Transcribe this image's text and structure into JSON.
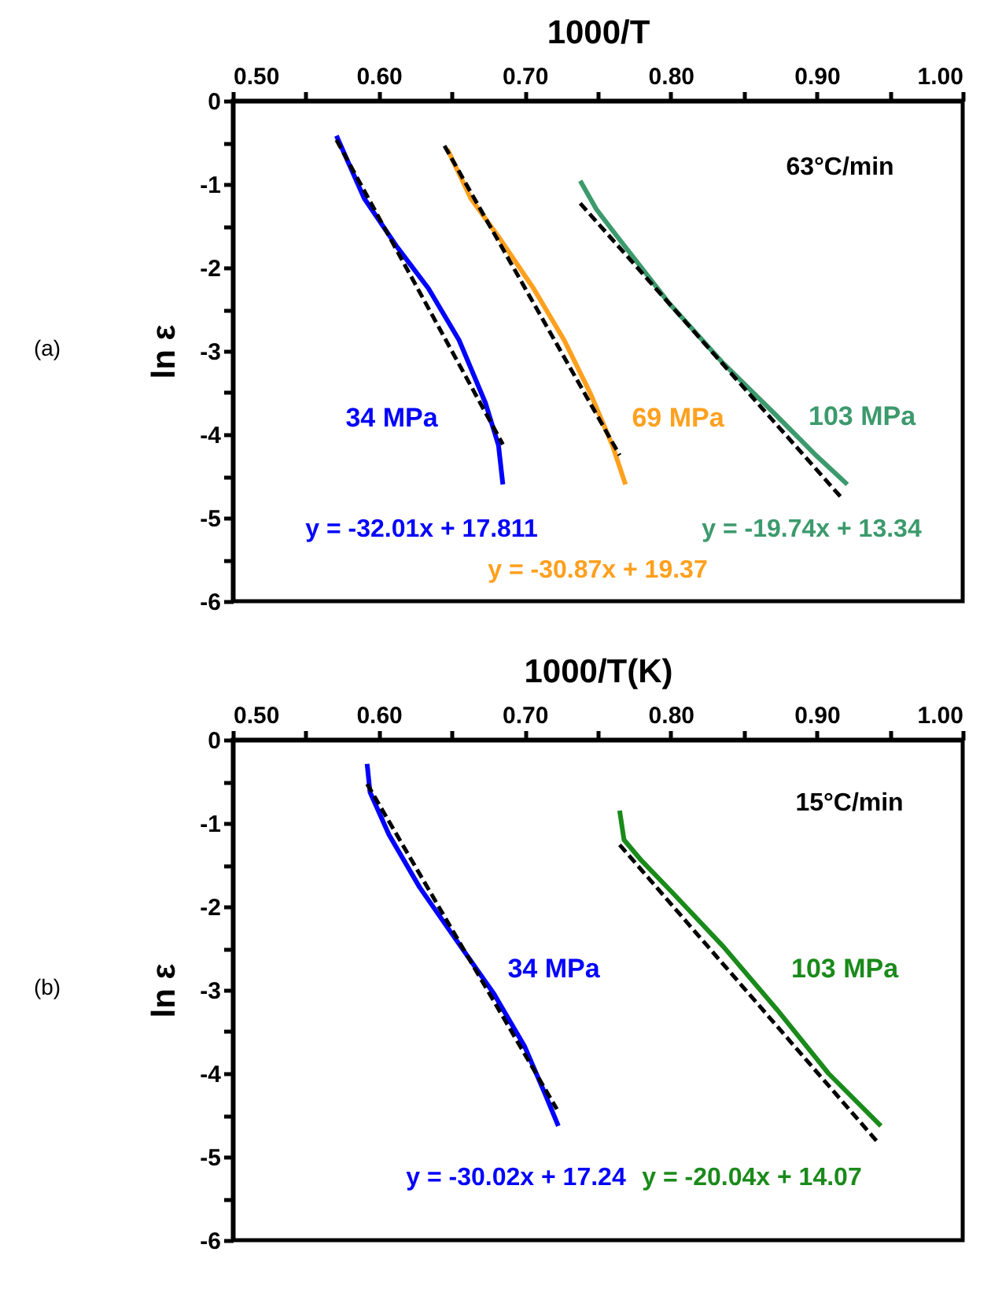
{
  "chart_data": [
    {
      "type": "line",
      "xlabel": "1000/T",
      "ylabel": "ln ε",
      "xlim": [
        0.5,
        1.0
      ],
      "ylim": [
        -6,
        0
      ],
      "xticks": [
        {
          "value": 0.5,
          "label": "0.50"
        },
        {
          "value": 0.55,
          "label": null
        },
        {
          "value": 0.6,
          "label": "0.60"
        },
        {
          "value": 0.65,
          "label": null
        },
        {
          "value": 0.7,
          "label": "0.70"
        },
        {
          "value": 0.75,
          "label": null
        },
        {
          "value": 0.8,
          "label": "0.80"
        },
        {
          "value": 0.85,
          "label": null
        },
        {
          "value": 0.9,
          "label": "0.90"
        },
        {
          "value": 0.95,
          "label": null
        },
        {
          "value": 1.0,
          "label": "1.00"
        }
      ],
      "yticks": [
        -6,
        {
          "value": -5.5,
          "label": null
        },
        -5,
        {
          "value": -4.5,
          "label": null
        },
        -4,
        {
          "value": -3.5,
          "label": null
        },
        -3,
        {
          "value": -2.5,
          "label": null
        },
        -2,
        {
          "value": -1.5,
          "label": null
        },
        -1,
        {
          "value": -0.5,
          "label": null
        },
        0
      ],
      "series": [
        {
          "name": "34 MPa",
          "color": "#0000ff",
          "x": [
            0.571,
            0.59,
            0.612,
            0.634,
            0.655,
            0.673,
            0.682,
            0.685
          ],
          "values": [
            -0.42,
            -1.17,
            -1.74,
            -2.25,
            -2.87,
            -3.62,
            -4.13,
            -4.6
          ]
        },
        {
          "color": "#000000",
          "line_style": "dashed",
          "x": [
            0.571,
            0.685
          ],
          "values": [
            -0.47,
            -4.12
          ]
        },
        {
          "name": "69 MPa",
          "color": "#ffa01e",
          "x": [
            0.647,
            0.663,
            0.684,
            0.706,
            0.727,
            0.745,
            0.76,
            0.769
          ],
          "values": [
            -0.58,
            -1.17,
            -1.68,
            -2.25,
            -2.87,
            -3.51,
            -4.13,
            -4.6
          ]
        },
        {
          "color": "#000000",
          "line_style": "dashed",
          "x": [
            0.645,
            0.765
          ],
          "values": [
            -0.54,
            -4.25
          ]
        },
        {
          "name": "103 MPa",
          "color": "#3c9a6c",
          "x": [
            0.738,
            0.749,
            0.763,
            0.799,
            0.835,
            0.871,
            0.9,
            0.921
          ],
          "values": [
            -0.96,
            -1.3,
            -1.62,
            -2.43,
            -3.13,
            -3.75,
            -4.26,
            -4.6
          ]
        },
        {
          "color": "#000000",
          "line_style": "dashed",
          "x": [
            0.738,
            0.917
          ],
          "values": [
            -1.23,
            -4.76
          ]
        }
      ],
      "annotations": [
        "(a)",
        "63°C/min",
        "y = -32.01x + 17.811",
        "y = -30.87x + 19.37",
        "y = -19.74x + 13.34"
      ]
    },
    {
      "type": "line",
      "xlabel": "1000/T(K)",
      "ylabel": "ln ε",
      "xlim": [
        0.5,
        1.0
      ],
      "ylim": [
        -6,
        0
      ],
      "xticks": [
        {
          "value": 0.5,
          "label": "0.50"
        },
        {
          "value": 0.55,
          "label": null
        },
        {
          "value": 0.6,
          "label": "0.60"
        },
        {
          "value": 0.65,
          "label": null
        },
        {
          "value": 0.7,
          "label": "0.70"
        },
        {
          "value": 0.75,
          "label": null
        },
        {
          "value": 0.8,
          "label": "0.80"
        },
        {
          "value": 0.85,
          "label": null
        },
        {
          "value": 0.9,
          "label": "0.90"
        },
        {
          "value": 0.95,
          "label": null
        },
        {
          "value": 1.0,
          "label": "1.00"
        }
      ],
      "yticks": [
        -6,
        {
          "value": -5.5,
          "label": null
        },
        -5,
        {
          "value": -4.5,
          "label": null
        },
        -4,
        {
          "value": -3.5,
          "label": null
        },
        -3,
        {
          "value": -2.5,
          "label": null
        },
        -2,
        {
          "value": -1.5,
          "label": null
        },
        -1,
        {
          "value": -0.5,
          "label": null
        },
        0
      ],
      "series": [
        {
          "name": "34 MPa",
          "color": "#0000ff",
          "x": [
            0.592,
            0.594,
            0.607,
            0.628,
            0.653,
            0.679,
            0.7,
            0.714,
            0.723
          ],
          "values": [
            -0.29,
            -0.63,
            -1.14,
            -1.77,
            -2.4,
            -3.05,
            -3.68,
            -4.25,
            -4.63
          ]
        },
        {
          "color": "#000000",
          "line_style": "dashed",
          "x": [
            0.592,
            0.722
          ],
          "values": [
            -0.53,
            -4.43
          ]
        },
        {
          "name": "103 MPa",
          "color": "#1a8a1a",
          "x": [
            0.765,
            0.768,
            0.78,
            0.801,
            0.836,
            0.873,
            0.908,
            0.944
          ],
          "values": [
            -0.85,
            -1.2,
            -1.45,
            -1.83,
            -2.48,
            -3.24,
            -4.0,
            -4.63
          ]
        },
        {
          "color": "#000000",
          "line_style": "dashed",
          "x": [
            0.765,
            0.942
          ],
          "values": [
            -1.26,
            -4.83
          ]
        }
      ],
      "annotations": [
        "(b)",
        "15°C/min",
        "y = -30.02x + 17.24",
        "y = -20.04x + 14.07"
      ]
    }
  ]
}
